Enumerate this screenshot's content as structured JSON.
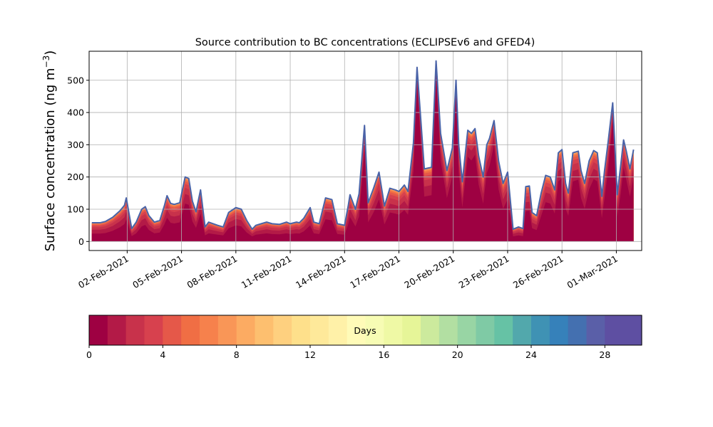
{
  "chart_data": {
    "type": "area",
    "title": "Source contribution to BC concentrations (ECLIPSEv6 and GFED4)",
    "ylabel_main": "Surface concentration (ng m",
    "ylabel_sup": "−3",
    "ylabel_close": ")",
    "xlabel": "",
    "x_start": "2021-01-31T12:00",
    "x_end": "2021-02-28T23:00",
    "xlim_days_from_feb1": [
      -1.1,
      29.4
    ],
    "ylim": [
      -28,
      590
    ],
    "grid": true,
    "yticks": [
      0,
      100,
      200,
      300,
      400,
      500
    ],
    "xticks": [
      {
        "day": 1,
        "label": "02-Feb-2021"
      },
      {
        "day": 4,
        "label": "05-Feb-2021"
      },
      {
        "day": 7,
        "label": "08-Feb-2021"
      },
      {
        "day": 10,
        "label": "11-Feb-2021"
      },
      {
        "day": 13,
        "label": "14-Feb-2021"
      },
      {
        "day": 16,
        "label": "17-Feb-2021"
      },
      {
        "day": 19,
        "label": "20-Feb-2021"
      },
      {
        "day": 22,
        "label": "23-Feb-2021"
      },
      {
        "day": 25,
        "label": "26-Feb-2021"
      },
      {
        "day": 28,
        "label": "01-Mar-2021"
      }
    ],
    "total_series": {
      "name": "Total",
      "x_days_from_feb1": [
        -0.95,
        -0.5,
        -0.2,
        0.2,
        0.6,
        0.85,
        0.95,
        1.25,
        1.5,
        1.8,
        2.0,
        2.2,
        2.5,
        2.8,
        3.05,
        3.2,
        3.4,
        3.6,
        3.9,
        4.2,
        4.4,
        4.6,
        4.8,
        5.05,
        5.3,
        5.5,
        5.75,
        6.0,
        6.3,
        6.6,
        7.0,
        7.3,
        7.6,
        7.9,
        8.1,
        8.4,
        8.7,
        9.0,
        9.4,
        9.8,
        10.0,
        10.35,
        10.5,
        10.75,
        11.1,
        11.3,
        11.6,
        11.95,
        12.3,
        12.6,
        13.0,
        13.2,
        13.3,
        13.6,
        13.8,
        14.1,
        14.3,
        14.6,
        14.9,
        15.2,
        15.5,
        15.8,
        16.0,
        16.3,
        16.5,
        16.8,
        17.0,
        17.4,
        17.8,
        18.05,
        18.3,
        18.65,
        18.95,
        19.15,
        19.3,
        19.5,
        19.8,
        20.0,
        20.2,
        20.4,
        20.65,
        20.85,
        21.0,
        21.25,
        21.5,
        21.75,
        22.0,
        22.3,
        22.6,
        22.85,
        23.0,
        23.2,
        23.35,
        23.6,
        23.85,
        24.1,
        24.35,
        24.6,
        24.8,
        25.0,
        25.2,
        25.35,
        25.6,
        25.9,
        26.05,
        26.25,
        26.5,
        26.75,
        26.95,
        27.2,
        27.35,
        27.55,
        27.8,
        28.05,
        28.25,
        28.4,
        28.55,
        28.75,
        28.95
      ],
      "y": [
        58,
        58,
        62,
        75,
        95,
        112,
        135,
        40,
        60,
        100,
        108,
        80,
        60,
        65,
        110,
        142,
        118,
        115,
        120,
        200,
        195,
        125,
        92,
        160,
        45,
        60,
        55,
        50,
        45,
        90,
        105,
        100,
        65,
        38,
        50,
        55,
        60,
        55,
        53,
        60,
        55,
        60,
        58,
        72,
        105,
        60,
        55,
        135,
        130,
        55,
        50,
        110,
        145,
        100,
        148,
        360,
        120,
        165,
        215,
        110,
        165,
        160,
        155,
        175,
        155,
        305,
        540,
        225,
        230,
        560,
        335,
        220,
        290,
        500,
        300,
        185,
        345,
        335,
        350,
        265,
        200,
        300,
        320,
        375,
        250,
        180,
        215,
        38,
        45,
        40,
        170,
        172,
        90,
        80,
        150,
        205,
        200,
        160,
        275,
        285,
        180,
        150,
        275,
        280,
        220,
        180,
        250,
        282,
        275,
        140,
        220,
        310,
        430,
        145,
        240,
        315,
        280,
        225,
        285
      ],
      "zero_offset": [
        -0.95,
        28.95
      ]
    },
    "colorbar": {
      "label": "Days",
      "min": 0,
      "max": 30,
      "ticks": [
        0,
        4,
        8,
        12,
        16,
        20,
        24,
        28
      ],
      "colors": [
        "#9e0142",
        "#b31a47",
        "#c8324b",
        "#d7414e",
        "#e55849",
        "#f06e44",
        "#f6814c",
        "#f99657",
        "#fcab62",
        "#fdbf6f",
        "#fed07f",
        "#fee08b",
        "#fee99a",
        "#fff1a8",
        "#fffbb8",
        "#f7fcb4",
        "#eff9a5",
        "#e6f598",
        "#ccea9d",
        "#b2dfa2",
        "#98d5a4",
        "#7fcaa5",
        "#66c2a5",
        "#52a8ac",
        "#3f92b4",
        "#3681ba",
        "#4470b0",
        "#5a5fa8",
        "#5e4fa2",
        "#5e4fa2"
      ]
    }
  }
}
